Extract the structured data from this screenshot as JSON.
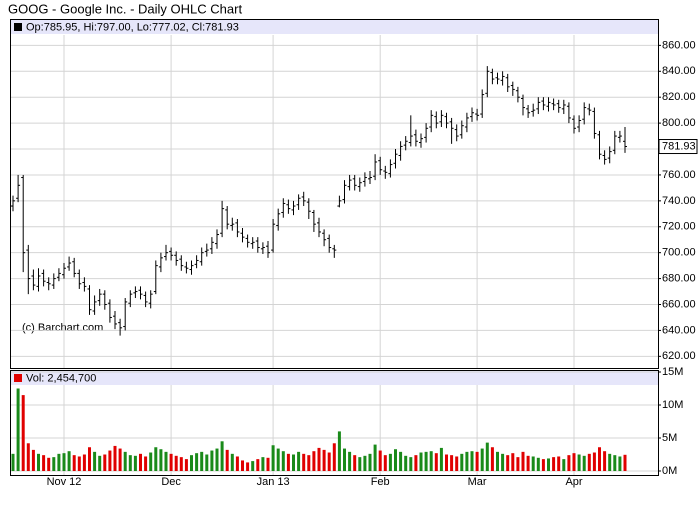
{
  "chart_data": {
    "type": "ohlc",
    "title": "GOOG - Google Inc. - Daily OHLC Chart",
    "ohlc_header": "Op:785.95, Hi:797.00, Lo:777.02, Cl:781.93",
    "volume_header": "Vol: 2,454,700",
    "watermark": "(c) Barchart.com",
    "categories": [
      null,
      null,
      null,
      null,
      null,
      null,
      null,
      null,
      null,
      null,
      "Nov 12",
      null,
      null,
      null,
      null,
      null,
      null,
      null,
      null,
      null,
      null,
      null,
      null,
      null,
      null,
      null,
      null,
      null,
      null,
      null,
      null,
      "Dec",
      null,
      null,
      null,
      null,
      null,
      null,
      null,
      null,
      null,
      null,
      null,
      null,
      null,
      null,
      null,
      null,
      null,
      null,
      null,
      "Jan 13",
      null,
      null,
      null,
      null,
      null,
      null,
      null,
      null,
      null,
      null,
      null,
      null,
      null,
      null,
      null,
      null,
      null,
      null,
      null,
      null,
      "Feb",
      null,
      null,
      null,
      null,
      null,
      null,
      null,
      null,
      null,
      null,
      null,
      null,
      null,
      null,
      null,
      null,
      null,
      null,
      "Mar",
      null,
      null,
      null,
      null,
      null,
      null,
      null,
      null,
      null,
      null,
      null,
      null,
      null,
      null,
      null,
      null,
      null,
      null,
      "Apr",
      null,
      null,
      null,
      null,
      null,
      null,
      null,
      null,
      null,
      null
    ],
    "open": [
      736,
      742,
      758,
      702,
      682,
      674,
      684,
      677,
      675,
      681,
      683,
      689,
      693,
      684,
      677,
      672,
      655,
      663,
      668,
      661,
      651,
      646,
      643,
      661,
      669,
      671,
      667,
      661,
      670,
      689,
      697,
      701,
      698,
      695,
      689,
      687,
      691,
      693,
      701,
      703,
      707,
      715,
      733,
      721,
      723,
      715,
      711,
      707,
      709,
      703,
      705,
      702,
      721,
      731,
      737,
      733,
      737,
      743,
      739,
      731,
      723,
      715,
      711,
      703,
      736,
      741,
      751,
      757,
      751,
      755,
      757,
      759,
      771,
      763,
      761,
      769,
      775,
      783,
      785,
      791,
      785,
      789,
      797,
      805,
      801,
      805,
      801,
      795,
      791,
      797,
      805,
      807,
      807,
      823,
      839,
      835,
      833,
      835,
      829,
      825,
      819,
      811,
      809,
      811,
      817,
      813,
      815,
      815,
      811,
      813,
      803,
      797,
      803,
      811,
      809,
      791,
      775,
      773,
      779,
      789,
      785.95
    ],
    "high": [
      744,
      760,
      760,
      706,
      687,
      688,
      687,
      681,
      684,
      688,
      692,
      697,
      696,
      687,
      681,
      675,
      667,
      672,
      671,
      664,
      655,
      649,
      665,
      671,
      674,
      674,
      670,
      671,
      694,
      700,
      706,
      704,
      701,
      698,
      693,
      694,
      698,
      704,
      707,
      712,
      718,
      740,
      736,
      727,
      726,
      719,
      714,
      712,
      712,
      708,
      709,
      726,
      734,
      742,
      741,
      740,
      745,
      747,
      742,
      733,
      727,
      718,
      714,
      706,
      744,
      756,
      760,
      760,
      758,
      762,
      763,
      776,
      774,
      767,
      772,
      780,
      786,
      790,
      806,
      795,
      792,
      800,
      810,
      809,
      810,
      808,
      804,
      799,
      802,
      808,
      812,
      811,
      826,
      844,
      842,
      839,
      840,
      838,
      832,
      828,
      822,
      814,
      815,
      820,
      820,
      820,
      819,
      818,
      818,
      816,
      806,
      806,
      816,
      815,
      812,
      794,
      779,
      782,
      794,
      794,
      797
    ],
    "low": [
      732,
      739,
      685,
      668,
      671,
      670,
      674,
      671,
      672,
      678,
      680,
      686,
      681,
      672,
      670,
      652,
      652,
      659,
      656,
      646,
      641,
      636,
      640,
      658,
      665,
      664,
      658,
      657,
      668,
      685,
      694,
      694,
      690,
      686,
      684,
      683,
      688,
      690,
      697,
      699,
      703,
      712,
      718,
      717,
      712,
      708,
      704,
      703,
      700,
      699,
      696,
      700,
      717,
      727,
      730,
      729,
      733,
      736,
      726,
      716,
      712,
      705,
      700,
      696,
      735,
      738,
      748,
      748,
      747,
      751,
      753,
      756,
      760,
      757,
      758,
      765,
      771,
      779,
      782,
      782,
      781,
      785,
      793,
      796,
      797,
      796,
      784,
      786,
      788,
      793,
      801,
      802,
      804,
      820,
      830,
      830,
      829,
      824,
      821,
      816,
      806,
      804,
      805,
      807,
      810,
      809,
      810,
      808,
      807,
      800,
      792,
      793,
      799,
      806,
      788,
      772,
      768,
      769,
      776,
      785,
      777.02
    ],
    "close": [
      740,
      752,
      700,
      680,
      675,
      682,
      678,
      676,
      680,
      684,
      688,
      692,
      684,
      676,
      674,
      656,
      662,
      668,
      660,
      650,
      645,
      642,
      662,
      668,
      670,
      668,
      662,
      668,
      690,
      696,
      700,
      698,
      694,
      690,
      688,
      690,
      694,
      700,
      702,
      708,
      714,
      734,
      722,
      722,
      716,
      712,
      708,
      708,
      704,
      704,
      700,
      722,
      730,
      738,
      734,
      736,
      742,
      740,
      732,
      722,
      716,
      710,
      704,
      702,
      740,
      752,
      756,
      752,
      754,
      758,
      758,
      770,
      764,
      762,
      768,
      776,
      782,
      786,
      790,
      786,
      788,
      796,
      806,
      800,
      806,
      800,
      796,
      790,
      798,
      804,
      808,
      806,
      822,
      840,
      834,
      834,
      836,
      828,
      826,
      820,
      812,
      808,
      810,
      816,
      814,
      816,
      814,
      812,
      814,
      804,
      796,
      802,
      812,
      810,
      792,
      776,
      772,
      778,
      790,
      790,
      781.93
    ],
    "volume": [
      2600000,
      12500000,
      11500000,
      4200000,
      3200000,
      2600000,
      2400000,
      2000000,
      2100000,
      2600000,
      2700000,
      3000000,
      2400000,
      2200000,
      2500000,
      3600000,
      2900000,
      2300000,
      2500000,
      3100000,
      3800000,
      3400000,
      2900000,
      2400000,
      2300000,
      2600000,
      2200000,
      2800000,
      3600000,
      3300000,
      2900000,
      2600000,
      2300000,
      2100000,
      1800000,
      2400000,
      2700000,
      2900000,
      2500000,
      3100000,
      3400000,
      4500000,
      3200000,
      2600000,
      2200000,
      1600000,
      1300000,
      1500000,
      1800000,
      2100000,
      2000000,
      3900000,
      3400000,
      3000000,
      2600000,
      2500000,
      2900000,
      2600000,
      2400000,
      3000000,
      3500000,
      3200000,
      2800000,
      4200000,
      6000000,
      3400000,
      2900000,
      2400000,
      2100000,
      2300000,
      2600000,
      4000000,
      3100000,
      2400000,
      2600000,
      3300000,
      2900000,
      2300000,
      2100000,
      2400000,
      2800000,
      2900000,
      3000000,
      2700000,
      3500000,
      2500000,
      2400000,
      2200000,
      2600000,
      2900000,
      3000000,
      2900000,
      3400000,
      4300000,
      3600000,
      2900000,
      2600000,
      2400000,
      2700000,
      2100000,
      2900000,
      2300000,
      2200000,
      2000000,
      1800000,
      1900000,
      2100000,
      2200000,
      1800000,
      2400000,
      2700000,
      2500000,
      2300000,
      2600000,
      2800000,
      3600000,
      3000000,
      2600000,
      2400000,
      2200000,
      2454700
    ],
    "ylim": [
      611,
      868
    ],
    "yticks": [
      {
        "value": 620,
        "label": "620.00"
      },
      {
        "value": 640,
        "label": "640.00"
      },
      {
        "value": 660,
        "label": "660.00"
      },
      {
        "value": 680,
        "label": "680.00"
      },
      {
        "value": 700,
        "label": "700.00"
      },
      {
        "value": 720,
        "label": "720.00"
      },
      {
        "value": 740,
        "label": "740.00"
      },
      {
        "value": 760,
        "label": "760.00"
      },
      {
        "value": 780,
        "label": "780.00"
      },
      {
        "value": 800,
        "label": "800.00"
      },
      {
        "value": 820,
        "label": "820.00"
      },
      {
        "value": 840,
        "label": "840.00"
      },
      {
        "value": 860,
        "label": "860.00"
      }
    ],
    "volume_ylim": [
      0,
      15000000
    ],
    "volume_yticks": [
      {
        "value": 0,
        "label": "0M"
      },
      {
        "value": 5000000,
        "label": "5M"
      },
      {
        "value": 10000000,
        "label": "10M"
      },
      {
        "value": 15000000,
        "label": "15M"
      }
    ],
    "bar_color": "#000000",
    "up_color": "#1a8a1a",
    "down_color": "#e00000",
    "grid": true
  }
}
